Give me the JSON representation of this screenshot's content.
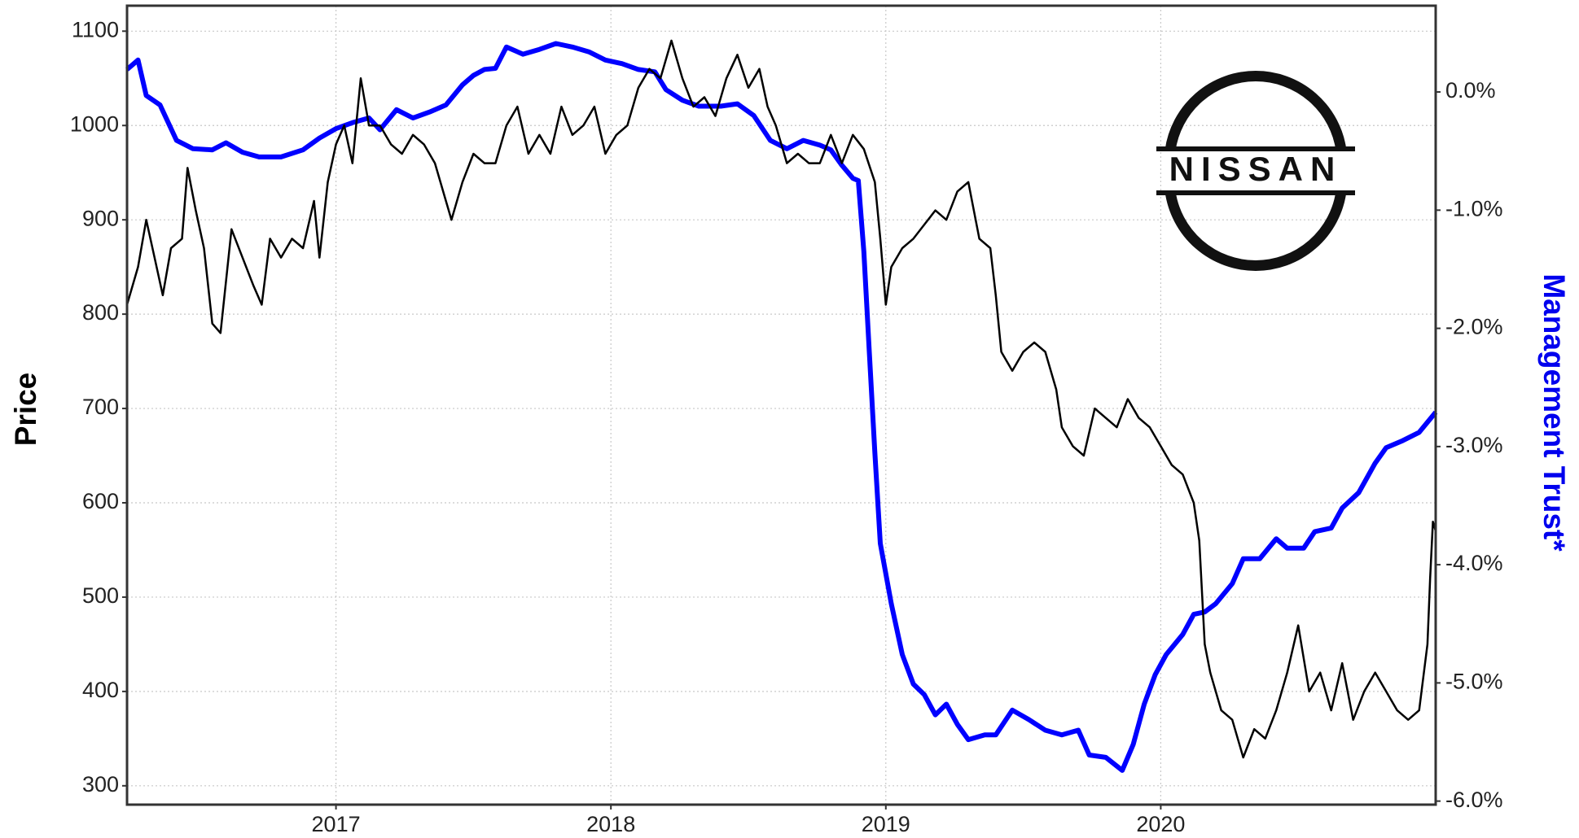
{
  "chart_data": {
    "type": "line",
    "ylabel": "Price",
    "y2label": "Management Trust*",
    "logo_text": "NISSAN",
    "xlim": [
      2016.24,
      2021.0
    ],
    "xticks": [
      2017,
      2018,
      2019,
      2020
    ],
    "ylim": [
      280,
      1127
    ],
    "yticks": [
      300,
      400,
      500,
      600,
      700,
      800,
      900,
      1000,
      1100
    ],
    "y2lim": [
      -6.03,
      0.73
    ],
    "y2ticks": [
      {
        "value": 0,
        "label": "0.0%"
      },
      {
        "value": -1,
        "label": "-1.0%"
      },
      {
        "value": -2,
        "label": "-2.0%"
      },
      {
        "value": -3,
        "label": "-3.0%"
      },
      {
        "value": -4,
        "label": "-4.0%"
      },
      {
        "value": -5,
        "label": "-5.0%"
      },
      {
        "value": -6,
        "label": "-6.0%"
      }
    ],
    "grid": true,
    "series": [
      {
        "color": "#000000",
        "axis": "y",
        "x": [
          2016.24,
          2016.28,
          2016.31,
          2016.34,
          2016.37,
          2016.4,
          2016.44,
          2016.46,
          2016.49,
          2016.52,
          2016.55,
          2016.58,
          2016.62,
          2016.66,
          2016.7,
          2016.73,
          2016.76,
          2016.8,
          2016.84,
          2016.88,
          2016.92,
          2016.94,
          2016.97,
          2017.0,
          2017.03,
          2017.06,
          2017.09,
          2017.12,
          2017.16,
          2017.2,
          2017.24,
          2017.28,
          2017.32,
          2017.36,
          2017.4,
          2017.42,
          2017.46,
          2017.5,
          2017.54,
          2017.58,
          2017.62,
          2017.66,
          2017.7,
          2017.74,
          2017.78,
          2017.82,
          2017.86,
          2017.9,
          2017.94,
          2017.98,
          2018.02,
          2018.06,
          2018.1,
          2018.14,
          2018.18,
          2018.22,
          2018.26,
          2018.3,
          2018.34,
          2018.38,
          2018.42,
          2018.46,
          2018.5,
          2018.54,
          2018.57,
          2018.6,
          2018.64,
          2018.68,
          2018.72,
          2018.76,
          2018.8,
          2018.84,
          2018.88,
          2018.92,
          2018.96,
          2018.98,
          2019.0,
          2019.02,
          2019.06,
          2019.1,
          2019.14,
          2019.18,
          2019.22,
          2019.26,
          2019.3,
          2019.34,
          2019.38,
          2019.4,
          2019.42,
          2019.46,
          2019.5,
          2019.54,
          2019.58,
          2019.62,
          2019.64,
          2019.68,
          2019.72,
          2019.76,
          2019.8,
          2019.84,
          2019.88,
          2019.92,
          2019.96,
          2020.0,
          2020.04,
          2020.08,
          2020.12,
          2020.14,
          2020.16,
          2020.18,
          2020.22,
          2020.26,
          2020.3,
          2020.34,
          2020.38,
          2020.42,
          2020.46,
          2020.5,
          2020.54,
          2020.58,
          2020.62,
          2020.66,
          2020.7,
          2020.74,
          2020.78,
          2020.82,
          2020.86,
          2020.9,
          2020.94,
          2020.97,
          2020.98,
          2020.99,
          2021.0
        ],
        "values": [
          810,
          850,
          900,
          860,
          820,
          870,
          880,
          955,
          910,
          870,
          790,
          780,
          890,
          860,
          830,
          810,
          880,
          860,
          880,
          870,
          920,
          860,
          940,
          980,
          1000,
          960,
          1050,
          1000,
          1000,
          980,
          970,
          990,
          980,
          960,
          920,
          900,
          940,
          970,
          960,
          960,
          1000,
          1020,
          970,
          990,
          970,
          1020,
          990,
          1000,
          1020,
          970,
          990,
          1000,
          1040,
          1060,
          1050,
          1090,
          1050,
          1020,
          1030,
          1010,
          1050,
          1075,
          1040,
          1060,
          1020,
          1000,
          960,
          970,
          960,
          960,
          990,
          960,
          990,
          975,
          940,
          880,
          810,
          850,
          870,
          880,
          895,
          910,
          900,
          930,
          940,
          880,
          870,
          820,
          760,
          740,
          760,
          770,
          760,
          720,
          680,
          660,
          650,
          700,
          690,
          680,
          710,
          690,
          680,
          660,
          640,
          630,
          600,
          560,
          450,
          420,
          380,
          370,
          330,
          360,
          350,
          380,
          420,
          470,
          400,
          420,
          380,
          430,
          370,
          400,
          420,
          400,
          380,
          370,
          380,
          450,
          520,
          580,
          570
        ]
      },
      {
        "color": "#0000ff",
        "axis": "y2",
        "x": [
          2016.24,
          2016.28,
          2016.31,
          2016.36,
          2016.42,
          2016.48,
          2016.55,
          2016.6,
          2016.66,
          2016.72,
          2016.8,
          2016.88,
          2016.94,
          2017.0,
          2017.06,
          2017.12,
          2017.16,
          2017.22,
          2017.28,
          2017.34,
          2017.4,
          2017.46,
          2017.5,
          2017.54,
          2017.58,
          2017.62,
          2017.68,
          2017.74,
          2017.8,
          2017.86,
          2017.92,
          2017.98,
          2018.04,
          2018.1,
          2018.16,
          2018.2,
          2018.26,
          2018.32,
          2018.4,
          2018.46,
          2018.52,
          2018.58,
          2018.64,
          2018.7,
          2018.76,
          2018.8,
          2018.84,
          2018.88,
          2018.9,
          2018.92,
          2018.94,
          2018.96,
          2018.98,
          2019.02,
          2019.06,
          2019.1,
          2019.14,
          2019.18,
          2019.22,
          2019.26,
          2019.3,
          2019.36,
          2019.4,
          2019.46,
          2019.52,
          2019.58,
          2019.64,
          2019.7,
          2019.74,
          2019.8,
          2019.86,
          2019.9,
          2019.94,
          2019.98,
          2020.02,
          2020.08,
          2020.12,
          2020.16,
          2020.2,
          2020.26,
          2020.3,
          2020.36,
          2020.42,
          2020.46,
          2020.52,
          2020.56,
          2020.62,
          2020.66,
          2020.72,
          2020.78,
          2020.82,
          2020.88,
          2020.94,
          2021.0
        ],
        "values": [
          0.19,
          0.27,
          -0.03,
          -0.11,
          -0.41,
          -0.48,
          -0.49,
          -0.43,
          -0.51,
          -0.55,
          -0.55,
          -0.49,
          -0.39,
          -0.31,
          -0.26,
          -0.22,
          -0.32,
          -0.15,
          -0.22,
          -0.17,
          -0.11,
          0.06,
          0.14,
          0.19,
          0.2,
          0.38,
          0.32,
          0.36,
          0.41,
          0.38,
          0.34,
          0.27,
          0.24,
          0.19,
          0.17,
          0.02,
          -0.07,
          -0.12,
          -0.12,
          -0.1,
          -0.2,
          -0.41,
          -0.48,
          -0.41,
          -0.45,
          -0.49,
          -0.62,
          -0.73,
          -0.75,
          -1.35,
          -2.2,
          -3.05,
          -3.82,
          -4.33,
          -4.76,
          -5.01,
          -5.1,
          -5.27,
          -5.18,
          -5.35,
          -5.48,
          -5.44,
          -5.44,
          -5.23,
          -5.31,
          -5.4,
          -5.44,
          -5.4,
          -5.61,
          -5.63,
          -5.74,
          -5.52,
          -5.18,
          -4.93,
          -4.76,
          -4.59,
          -4.42,
          -4.4,
          -4.33,
          -4.16,
          -3.95,
          -3.95,
          -3.78,
          -3.86,
          -3.86,
          -3.72,
          -3.69,
          -3.52,
          -3.39,
          -3.14,
          -3.01,
          -2.95,
          -2.88,
          -2.71
        ]
      }
    ]
  }
}
